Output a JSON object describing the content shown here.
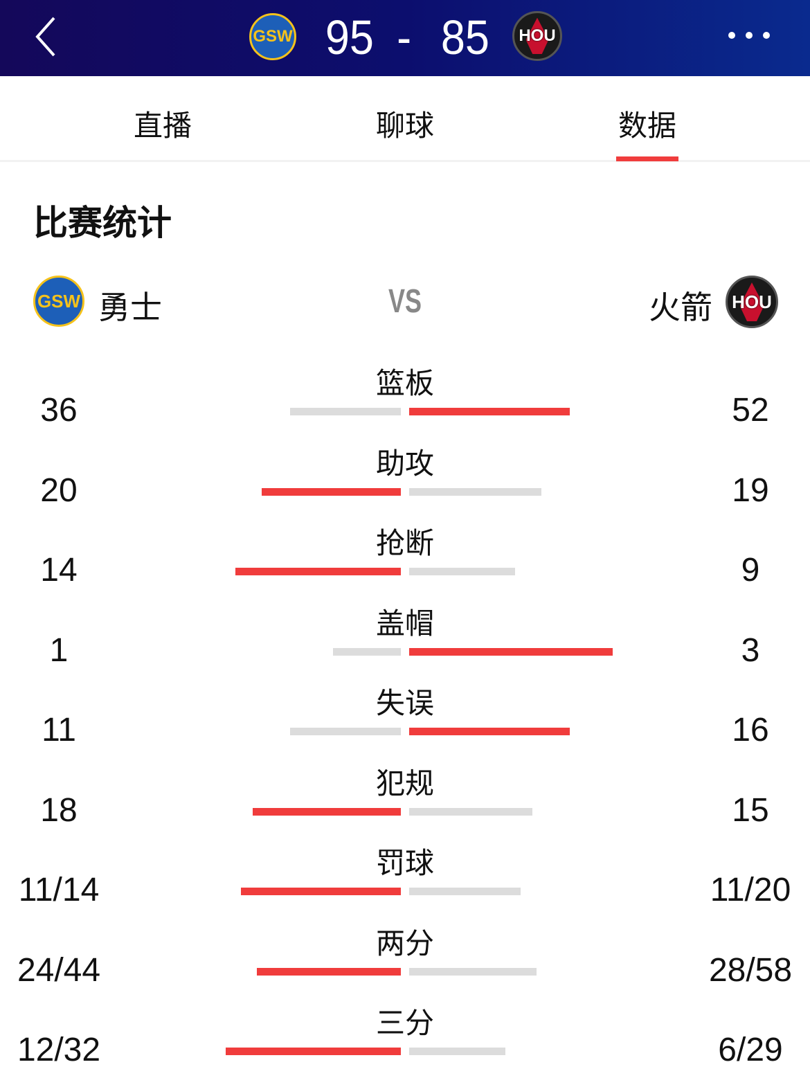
{
  "header": {
    "home_abbr": "GSW",
    "away_abbr": "HOU",
    "home_score": "95",
    "separator": "-",
    "away_score": "85"
  },
  "tabs": [
    {
      "label": "直播"
    },
    {
      "label": "聊球"
    },
    {
      "label": "数据",
      "active": true
    }
  ],
  "section_title": "比赛统计",
  "teams": {
    "home": "勇士",
    "away": "火箭",
    "vs": "VS"
  },
  "colors": {
    "accent": "#f03c3c",
    "bar_low": "#dcdcdc",
    "header": "#0c0e6e"
  },
  "stats": [
    {
      "label": "篮板",
      "home": "36",
      "away": "52",
      "home_val": 36,
      "away_val": 52
    },
    {
      "label": "助攻",
      "home": "20",
      "away": "19",
      "home_val": 20,
      "away_val": 19
    },
    {
      "label": "抢断",
      "home": "14",
      "away": "9",
      "home_val": 14,
      "away_val": 9
    },
    {
      "label": "盖帽",
      "home": "1",
      "away": "3",
      "home_val": 1,
      "away_val": 3
    },
    {
      "label": "失误",
      "home": "11",
      "away": "16",
      "home_val": 11,
      "away_val": 16
    },
    {
      "label": "犯规",
      "home": "18",
      "away": "15",
      "home_val": 18,
      "away_val": 15
    },
    {
      "label": "罚球",
      "home": "11/14",
      "away": "11/20",
      "home_val": 0.786,
      "away_val": 0.55
    },
    {
      "label": "两分",
      "home": "24/44",
      "away": "28/58",
      "home_val": 0.545,
      "away_val": 0.483
    },
    {
      "label": "三分",
      "home": "12/32",
      "away": "6/29",
      "home_val": 0.375,
      "away_val": 0.207
    }
  ]
}
